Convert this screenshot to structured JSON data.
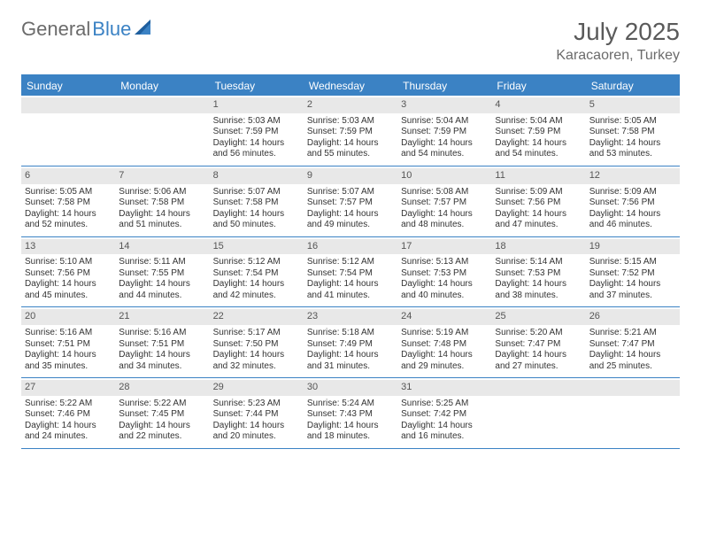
{
  "brand": {
    "part1": "General",
    "part2": "Blue"
  },
  "title": "July 2025",
  "location": "Karacaoren, Turkey",
  "colors": {
    "accent": "#3b82c4",
    "header_bg": "#3b82c4",
    "daynum_bg": "#e8e8e8",
    "text": "#333333",
    "muted": "#6b6b6b"
  },
  "day_headers": [
    "Sunday",
    "Monday",
    "Tuesday",
    "Wednesday",
    "Thursday",
    "Friday",
    "Saturday"
  ],
  "weeks": [
    [
      null,
      null,
      {
        "n": "1",
        "sunrise": "Sunrise: 5:03 AM",
        "sunset": "Sunset: 7:59 PM",
        "daylight": "Daylight: 14 hours and 56 minutes."
      },
      {
        "n": "2",
        "sunrise": "Sunrise: 5:03 AM",
        "sunset": "Sunset: 7:59 PM",
        "daylight": "Daylight: 14 hours and 55 minutes."
      },
      {
        "n": "3",
        "sunrise": "Sunrise: 5:04 AM",
        "sunset": "Sunset: 7:59 PM",
        "daylight": "Daylight: 14 hours and 54 minutes."
      },
      {
        "n": "4",
        "sunrise": "Sunrise: 5:04 AM",
        "sunset": "Sunset: 7:59 PM",
        "daylight": "Daylight: 14 hours and 54 minutes."
      },
      {
        "n": "5",
        "sunrise": "Sunrise: 5:05 AM",
        "sunset": "Sunset: 7:58 PM",
        "daylight": "Daylight: 14 hours and 53 minutes."
      }
    ],
    [
      {
        "n": "6",
        "sunrise": "Sunrise: 5:05 AM",
        "sunset": "Sunset: 7:58 PM",
        "daylight": "Daylight: 14 hours and 52 minutes."
      },
      {
        "n": "7",
        "sunrise": "Sunrise: 5:06 AM",
        "sunset": "Sunset: 7:58 PM",
        "daylight": "Daylight: 14 hours and 51 minutes."
      },
      {
        "n": "8",
        "sunrise": "Sunrise: 5:07 AM",
        "sunset": "Sunset: 7:58 PM",
        "daylight": "Daylight: 14 hours and 50 minutes."
      },
      {
        "n": "9",
        "sunrise": "Sunrise: 5:07 AM",
        "sunset": "Sunset: 7:57 PM",
        "daylight": "Daylight: 14 hours and 49 minutes."
      },
      {
        "n": "10",
        "sunrise": "Sunrise: 5:08 AM",
        "sunset": "Sunset: 7:57 PM",
        "daylight": "Daylight: 14 hours and 48 minutes."
      },
      {
        "n": "11",
        "sunrise": "Sunrise: 5:09 AM",
        "sunset": "Sunset: 7:56 PM",
        "daylight": "Daylight: 14 hours and 47 minutes."
      },
      {
        "n": "12",
        "sunrise": "Sunrise: 5:09 AM",
        "sunset": "Sunset: 7:56 PM",
        "daylight": "Daylight: 14 hours and 46 minutes."
      }
    ],
    [
      {
        "n": "13",
        "sunrise": "Sunrise: 5:10 AM",
        "sunset": "Sunset: 7:56 PM",
        "daylight": "Daylight: 14 hours and 45 minutes."
      },
      {
        "n": "14",
        "sunrise": "Sunrise: 5:11 AM",
        "sunset": "Sunset: 7:55 PM",
        "daylight": "Daylight: 14 hours and 44 minutes."
      },
      {
        "n": "15",
        "sunrise": "Sunrise: 5:12 AM",
        "sunset": "Sunset: 7:54 PM",
        "daylight": "Daylight: 14 hours and 42 minutes."
      },
      {
        "n": "16",
        "sunrise": "Sunrise: 5:12 AM",
        "sunset": "Sunset: 7:54 PM",
        "daylight": "Daylight: 14 hours and 41 minutes."
      },
      {
        "n": "17",
        "sunrise": "Sunrise: 5:13 AM",
        "sunset": "Sunset: 7:53 PM",
        "daylight": "Daylight: 14 hours and 40 minutes."
      },
      {
        "n": "18",
        "sunrise": "Sunrise: 5:14 AM",
        "sunset": "Sunset: 7:53 PM",
        "daylight": "Daylight: 14 hours and 38 minutes."
      },
      {
        "n": "19",
        "sunrise": "Sunrise: 5:15 AM",
        "sunset": "Sunset: 7:52 PM",
        "daylight": "Daylight: 14 hours and 37 minutes."
      }
    ],
    [
      {
        "n": "20",
        "sunrise": "Sunrise: 5:16 AM",
        "sunset": "Sunset: 7:51 PM",
        "daylight": "Daylight: 14 hours and 35 minutes."
      },
      {
        "n": "21",
        "sunrise": "Sunrise: 5:16 AM",
        "sunset": "Sunset: 7:51 PM",
        "daylight": "Daylight: 14 hours and 34 minutes."
      },
      {
        "n": "22",
        "sunrise": "Sunrise: 5:17 AM",
        "sunset": "Sunset: 7:50 PM",
        "daylight": "Daylight: 14 hours and 32 minutes."
      },
      {
        "n": "23",
        "sunrise": "Sunrise: 5:18 AM",
        "sunset": "Sunset: 7:49 PM",
        "daylight": "Daylight: 14 hours and 31 minutes."
      },
      {
        "n": "24",
        "sunrise": "Sunrise: 5:19 AM",
        "sunset": "Sunset: 7:48 PM",
        "daylight": "Daylight: 14 hours and 29 minutes."
      },
      {
        "n": "25",
        "sunrise": "Sunrise: 5:20 AM",
        "sunset": "Sunset: 7:47 PM",
        "daylight": "Daylight: 14 hours and 27 minutes."
      },
      {
        "n": "26",
        "sunrise": "Sunrise: 5:21 AM",
        "sunset": "Sunset: 7:47 PM",
        "daylight": "Daylight: 14 hours and 25 minutes."
      }
    ],
    [
      {
        "n": "27",
        "sunrise": "Sunrise: 5:22 AM",
        "sunset": "Sunset: 7:46 PM",
        "daylight": "Daylight: 14 hours and 24 minutes."
      },
      {
        "n": "28",
        "sunrise": "Sunrise: 5:22 AM",
        "sunset": "Sunset: 7:45 PM",
        "daylight": "Daylight: 14 hours and 22 minutes."
      },
      {
        "n": "29",
        "sunrise": "Sunrise: 5:23 AM",
        "sunset": "Sunset: 7:44 PM",
        "daylight": "Daylight: 14 hours and 20 minutes."
      },
      {
        "n": "30",
        "sunrise": "Sunrise: 5:24 AM",
        "sunset": "Sunset: 7:43 PM",
        "daylight": "Daylight: 14 hours and 18 minutes."
      },
      {
        "n": "31",
        "sunrise": "Sunrise: 5:25 AM",
        "sunset": "Sunset: 7:42 PM",
        "daylight": "Daylight: 14 hours and 16 minutes."
      },
      null,
      null
    ]
  ]
}
